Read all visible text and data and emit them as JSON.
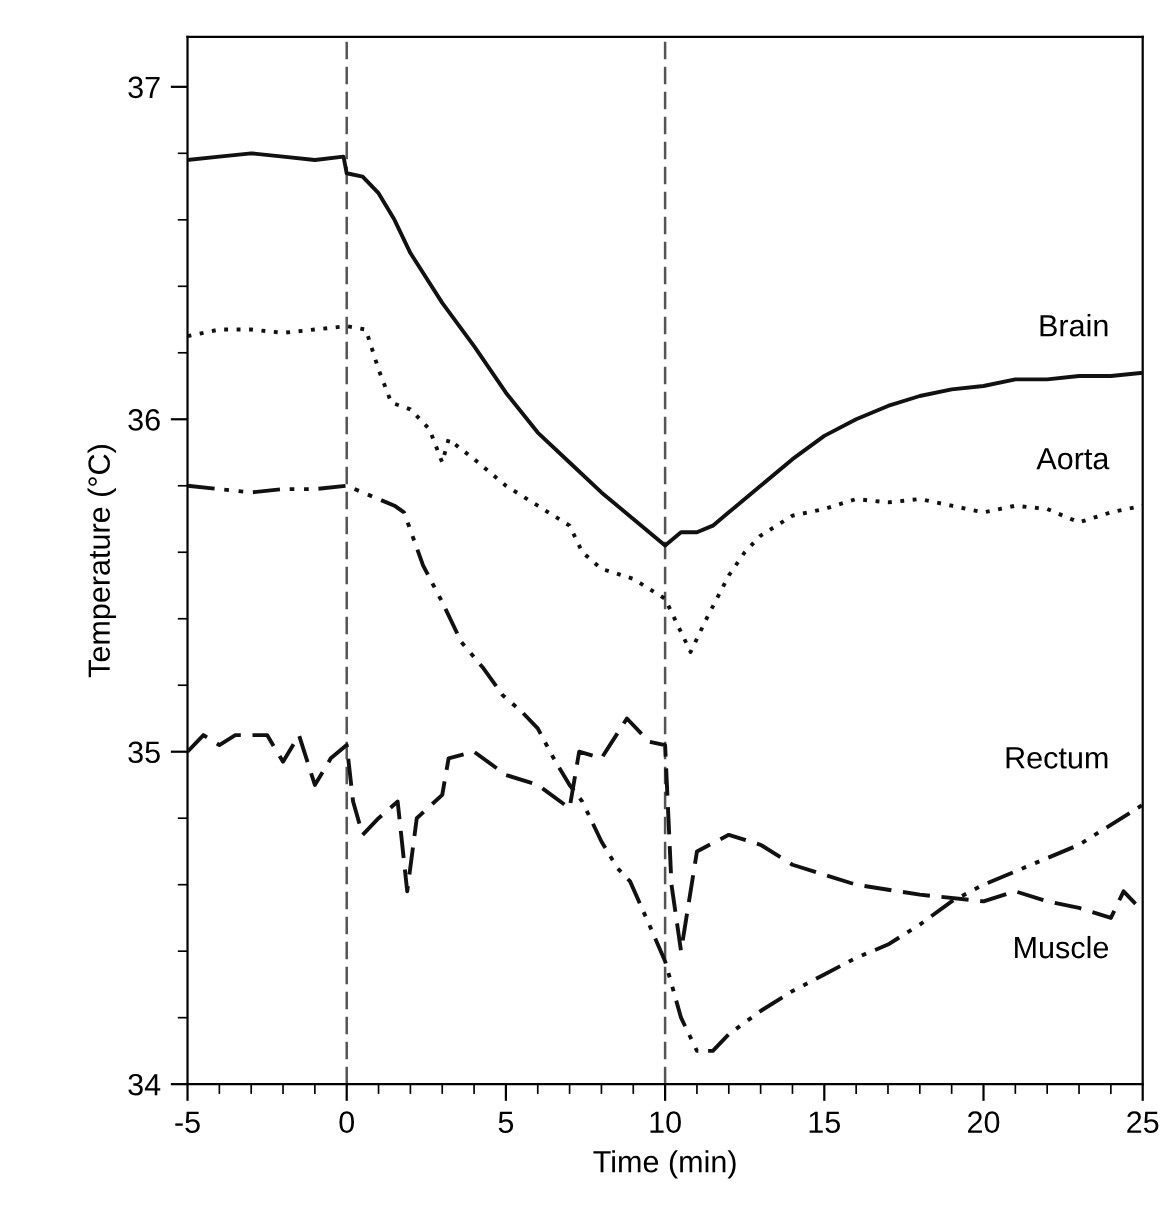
{
  "chart_data": {
    "type": "line",
    "xlabel": "Time (min)",
    "ylabel": "Temperature (°C)",
    "xlim": [
      -5,
      25
    ],
    "ylim": [
      34,
      37.15
    ],
    "xticks": [
      -5,
      0,
      5,
      10,
      15,
      20,
      25
    ],
    "yticks": [
      34,
      35,
      36,
      37
    ],
    "grid": false,
    "legend": false,
    "marker": "none",
    "ref_lines": [
      {
        "axis": "x",
        "value": 0,
        "color": "#555555",
        "line_style": "dashed"
      },
      {
        "axis": "x",
        "value": 10,
        "color": "#555555",
        "line_style": "dashed"
      }
    ],
    "series": [
      {
        "name": "Brain",
        "color": "#111111",
        "line_style": "solid",
        "x": [
          -5,
          -4,
          -3,
          -2,
          -1,
          -0.1,
          0,
          0.5,
          1,
          1.5,
          2,
          3,
          4,
          5,
          6,
          7,
          8,
          9,
          10,
          10.5,
          11,
          11.5,
          12,
          13,
          14,
          15,
          16,
          17,
          18,
          19,
          20,
          21,
          22,
          23,
          24,
          25
        ],
        "values": [
          36.78,
          36.79,
          36.8,
          36.79,
          36.78,
          36.79,
          36.74,
          36.73,
          36.68,
          36.6,
          36.5,
          36.35,
          36.22,
          36.08,
          35.96,
          35.87,
          35.78,
          35.7,
          35.62,
          35.66,
          35.66,
          35.68,
          35.72,
          35.8,
          35.88,
          35.95,
          36.0,
          36.04,
          36.07,
          36.09,
          36.1,
          36.12,
          36.12,
          36.13,
          36.13,
          36.14
        ]
      },
      {
        "name": "Aorta",
        "color": "#111111",
        "line_style": "dotted",
        "x": [
          -5,
          -4,
          -3,
          -2,
          -1,
          0,
          0.6,
          1,
          1.4,
          2,
          2.6,
          3,
          3.2,
          4,
          5,
          6,
          7,
          7.4,
          8,
          9,
          10,
          10.4,
          10.8,
          11.3,
          12,
          12.5,
          13,
          14,
          15,
          16,
          17,
          18,
          19,
          20,
          21,
          22,
          23,
          24,
          25
        ],
        "values": [
          36.25,
          36.27,
          36.27,
          36.26,
          36.27,
          36.28,
          36.27,
          36.15,
          36.05,
          36.03,
          35.97,
          35.87,
          35.94,
          35.88,
          35.8,
          35.74,
          35.68,
          35.6,
          35.55,
          35.52,
          35.46,
          35.38,
          35.3,
          35.4,
          35.53,
          35.6,
          35.65,
          35.71,
          35.73,
          35.76,
          35.75,
          35.76,
          35.74,
          35.72,
          35.74,
          35.73,
          35.69,
          35.72,
          35.74
        ]
      },
      {
        "name": "Rectum",
        "color": "#111111",
        "line_style": "dashdotdot",
        "x": [
          -5,
          -4,
          -3,
          -2,
          -1,
          0,
          0.5,
          1,
          1.5,
          1.8,
          2.4,
          3,
          3.6,
          4.3,
          4.9,
          5.5,
          6,
          6.5,
          7,
          7.4,
          8,
          8.5,
          8.9,
          9.5,
          10,
          10.5,
          11,
          11.5,
          12,
          13,
          14,
          15,
          16,
          17,
          18,
          19,
          20,
          21,
          22,
          23,
          24,
          25
        ],
        "values": [
          35.8,
          35.79,
          35.78,
          35.79,
          35.79,
          35.8,
          35.78,
          35.76,
          35.74,
          35.72,
          35.56,
          35.45,
          35.33,
          35.25,
          35.17,
          35.12,
          35.07,
          34.98,
          34.9,
          34.85,
          34.73,
          34.65,
          34.61,
          34.48,
          34.37,
          34.2,
          34.1,
          34.1,
          34.15,
          34.22,
          34.28,
          34.33,
          34.38,
          34.42,
          34.48,
          34.55,
          34.6,
          34.64,
          34.68,
          34.72,
          34.78,
          34.84
        ]
      },
      {
        "name": "Muscle",
        "color": "#111111",
        "line_style": "dashed",
        "x": [
          -5,
          -4.5,
          -4,
          -3.5,
          -2.5,
          -2,
          -1.5,
          -1,
          -0.5,
          0,
          0.2,
          0.5,
          1,
          1.6,
          1.9,
          2.2,
          3,
          3.2,
          4,
          5,
          6,
          7,
          7.3,
          8,
          8.8,
          9.5,
          10,
          10.2,
          10.5,
          11,
          12,
          13,
          14,
          16,
          18,
          20,
          21,
          22,
          23,
          24,
          24.4,
          25
        ],
        "values": [
          35.0,
          35.05,
          35.02,
          35.05,
          35.05,
          34.97,
          35.05,
          34.9,
          34.98,
          35.02,
          34.85,
          34.75,
          34.8,
          34.85,
          34.58,
          34.8,
          34.87,
          34.98,
          35.0,
          34.93,
          34.9,
          34.83,
          35.0,
          34.98,
          35.1,
          35.03,
          35.02,
          34.6,
          34.4,
          34.7,
          34.75,
          34.72,
          34.66,
          34.6,
          34.57,
          34.55,
          34.58,
          34.55,
          34.53,
          34.5,
          34.58,
          34.52
        ]
      }
    ]
  }
}
